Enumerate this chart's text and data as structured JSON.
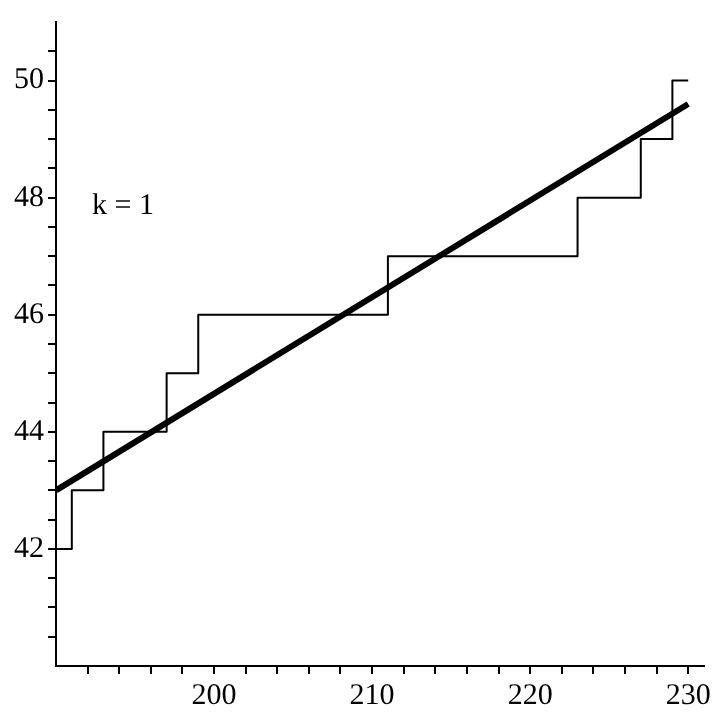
{
  "chart_data": {
    "type": "step",
    "annotations": [
      "k = 1"
    ],
    "xlim": [
      190,
      231
    ],
    "ylim": [
      40,
      51
    ],
    "xticks": [
      {
        "value": 192,
        "label": null
      },
      {
        "value": 194,
        "label": null
      },
      {
        "value": 196,
        "label": null
      },
      {
        "value": 198,
        "label": null
      },
      200,
      {
        "value": 202,
        "label": null
      },
      {
        "value": 204,
        "label": null
      },
      {
        "value": 206,
        "label": null
      },
      {
        "value": 208,
        "label": null
      },
      210,
      {
        "value": 212,
        "label": null
      },
      {
        "value": 214,
        "label": null
      },
      {
        "value": 216,
        "label": null
      },
      {
        "value": 218,
        "label": null
      },
      220,
      {
        "value": 222,
        "label": null
      },
      {
        "value": 224,
        "label": null
      },
      {
        "value": 226,
        "label": null
      },
      {
        "value": 228,
        "label": null
      },
      230
    ],
    "yticks": [
      {
        "value": 40.5,
        "label": null
      },
      {
        "value": 41,
        "label": null
      },
      {
        "value": 41.5,
        "label": null
      },
      42,
      {
        "value": 42.5,
        "label": null
      },
      {
        "value": 43,
        "label": null
      },
      {
        "value": 43.5,
        "label": null
      },
      44,
      {
        "value": 44.5,
        "label": null
      },
      {
        "value": 45,
        "label": null
      },
      {
        "value": 45.5,
        "label": null
      },
      46,
      {
        "value": 46.5,
        "label": null
      },
      {
        "value": 47,
        "label": null
      },
      {
        "value": 47.5,
        "label": null
      },
      48,
      {
        "value": 48.5,
        "label": null
      },
      {
        "value": 49,
        "label": null
      },
      {
        "value": 49.5,
        "label": null
      },
      50,
      {
        "value": 50.5,
        "label": null
      }
    ],
    "marker": "none",
    "legend": false,
    "series": [
      {
        "color": "#000000",
        "x": [
          190,
          191,
          193,
          197,
          199,
          211,
          223,
          227,
          229,
          230
        ],
        "values": [
          42,
          43,
          44,
          45,
          46,
          47,
          48,
          49,
          50,
          50
        ]
      },
      {
        "type": "line",
        "color": "#000000",
        "x": [
          190,
          230
        ],
        "values": [
          43.0,
          49.6
        ]
      }
    ]
  }
}
